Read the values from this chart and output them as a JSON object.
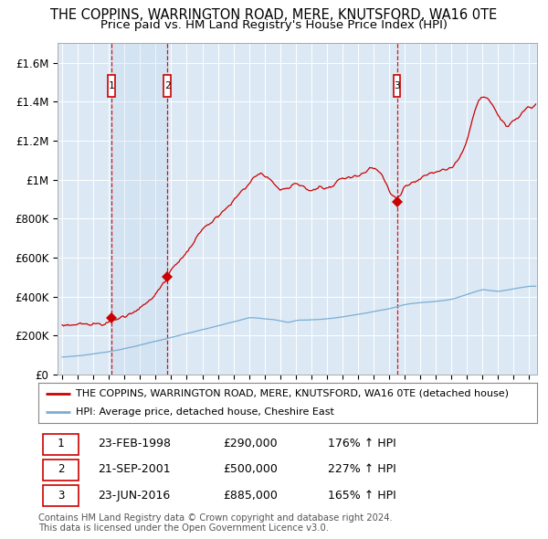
{
  "title": "THE COPPINS, WARRINGTON ROAD, MERE, KNUTSFORD, WA16 0TE",
  "subtitle": "Price paid vs. HM Land Registry's House Price Index (HPI)",
  "title_fontsize": 10.5,
  "subtitle_fontsize": 9.5,
  "red_line_color": "#cc0000",
  "blue_line_color": "#7aadd4",
  "background_color": "#ffffff",
  "plot_bg_color": "#dce9f5",
  "grid_color": "#ffffff",
  "sale_markers": [
    {
      "num": 1,
      "date_str": "23-FEB-1998",
      "price": 290000,
      "date_x": 1998.13,
      "hpi_pct": "176%"
    },
    {
      "num": 2,
      "date_str": "21-SEP-2001",
      "price": 500000,
      "date_x": 2001.72,
      "hpi_pct": "227%"
    },
    {
      "num": 3,
      "date_str": "23-JUN-2016",
      "price": 885000,
      "date_x": 2016.47,
      "hpi_pct": "165%"
    }
  ],
  "legend_entries": [
    "THE COPPINS, WARRINGTON ROAD, MERE, KNUTSFORD, WA16 0TE (detached house)",
    "HPI: Average price, detached house, Cheshire East"
  ],
  "footnote": "Contains HM Land Registry data © Crown copyright and database right 2024.\nThis data is licensed under the Open Government Licence v3.0.",
  "xmin": 1994.7,
  "xmax": 2025.5,
  "ylim": [
    0,
    1700000
  ],
  "yticks": [
    0,
    200000,
    400000,
    600000,
    800000,
    1000000,
    1200000,
    1400000,
    1600000
  ],
  "ytick_labels": [
    "£0",
    "£200K",
    "£400K",
    "£600K",
    "£800K",
    "£1M",
    "£1.2M",
    "£1.4M",
    "£1.6M"
  ]
}
